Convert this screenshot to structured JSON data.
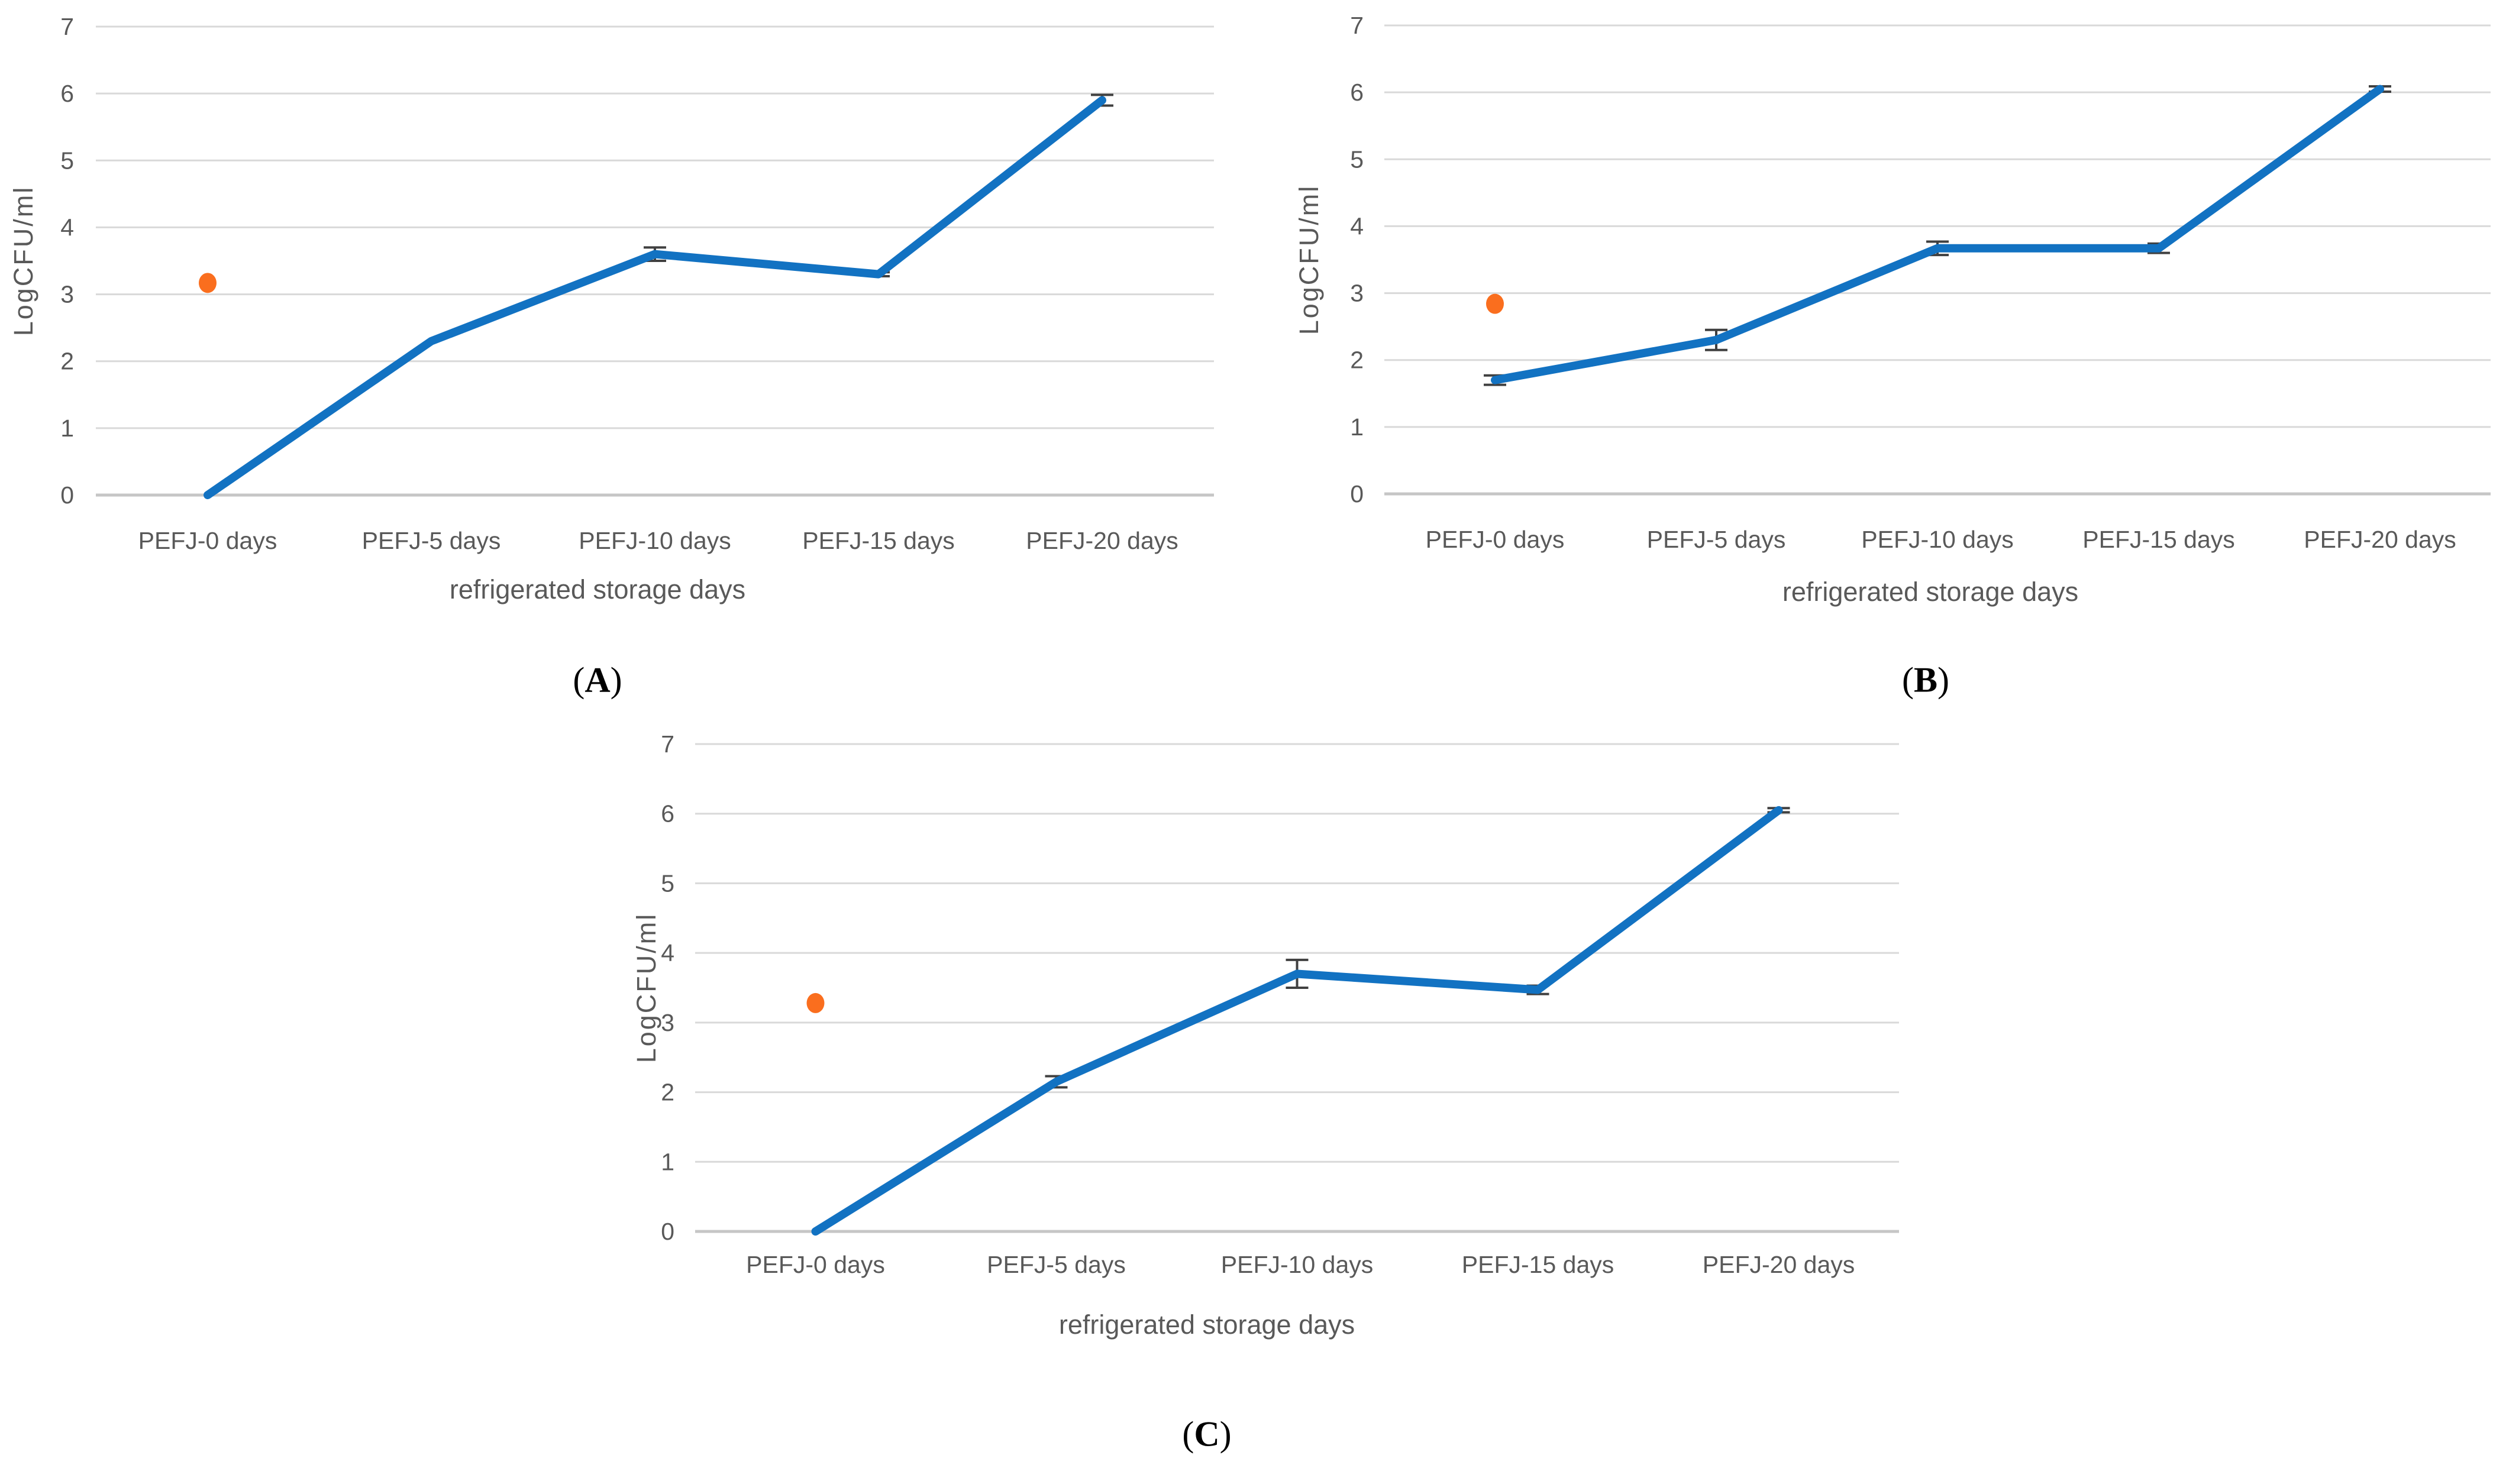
{
  "colors": {
    "line": "#1272C2",
    "point": "#FA6E1E",
    "grid": "#D9D9D9",
    "zero_axis": "#C6C6C6",
    "error_bar": "#404040",
    "text": "#595959",
    "panel_label_text": "#000000",
    "background": "#FFFFFF"
  },
  "chart_data": [
    {
      "panel": "A",
      "panel_label": {
        "open": "(",
        "letter": "A",
        "close": ")"
      },
      "type": "line",
      "title": "",
      "categories": [
        "PEFJ-0 days",
        "PEFJ-5 days",
        "PEFJ-10 days",
        "PEFJ-15 days",
        "PEFJ-20 days"
      ],
      "xlabel": "refrigerated storage days",
      "ylabel": "LogCFU/ml",
      "ylim": [
        0,
        7
      ],
      "yticks": [
        0,
        1,
        2,
        3,
        4,
        5,
        6,
        7
      ],
      "grid": true,
      "legend": "none",
      "series": [
        {
          "name": "blue-line",
          "values": [
            0,
            2.3,
            3.6,
            3.3,
            5.9
          ],
          "errors": [
            0,
            0,
            0.1,
            0.03,
            0.08
          ]
        }
      ],
      "points": [
        {
          "name": "orange-dot",
          "category": "PEFJ-0 days",
          "category_index": 0,
          "value": 3.17
        }
      ]
    },
    {
      "panel": "B",
      "panel_label": {
        "open": "(",
        "letter": "B",
        "close": ")"
      },
      "type": "line",
      "title": "",
      "categories": [
        "PEFJ-0 days",
        "PEFJ-5 days",
        "PEFJ-10 days",
        "PEFJ-15 days",
        "PEFJ-20 days"
      ],
      "xlabel": "refrigerated storage days",
      "ylabel": "LogCFU/ml",
      "ylim": [
        0,
        7
      ],
      "yticks": [
        0,
        1,
        2,
        3,
        4,
        5,
        6,
        7
      ],
      "grid": true,
      "legend": "none",
      "series": [
        {
          "name": "blue-line",
          "values": [
            1.7,
            2.3,
            3.67,
            3.67,
            6.05
          ],
          "errors": [
            0.07,
            0.15,
            0.1,
            0.07,
            0.04
          ]
        }
      ],
      "points": [
        {
          "name": "orange-dot",
          "category": "PEFJ-0 days",
          "category_index": 0,
          "value": 2.84
        }
      ]
    },
    {
      "panel": "C",
      "panel_label": {
        "open": "(",
        "letter": "C",
        "close": ")"
      },
      "type": "line",
      "title": "",
      "categories": [
        "PEFJ-0 days",
        "PEFJ-5 days",
        "PEFJ-10 days",
        "PEFJ-15 days",
        "PEFJ-20 days"
      ],
      "xlabel": "refrigerated storage days",
      "ylabel": "LogCFU/ml",
      "ylim": [
        0,
        7
      ],
      "yticks": [
        0,
        1,
        2,
        3,
        4,
        5,
        6,
        7
      ],
      "grid": true,
      "legend": "none",
      "series": [
        {
          "name": "blue-line",
          "values": [
            0,
            2.15,
            3.7,
            3.47,
            6.05
          ],
          "errors": [
            0,
            0.08,
            0.2,
            0.06,
            0.03
          ]
        }
      ],
      "points": [
        {
          "name": "orange-dot",
          "category": "PEFJ-0 days",
          "category_index": 0,
          "value": 3.28
        }
      ]
    }
  ]
}
